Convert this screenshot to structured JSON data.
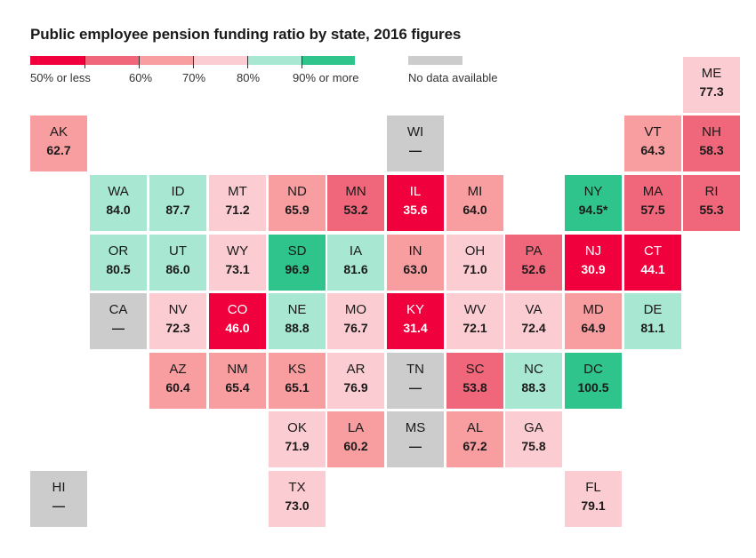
{
  "title": "Public employee pension funding ratio by state, 2016 figures",
  "legend": {
    "bins": [
      {
        "label": "50% or less",
        "color": "#f0003c"
      },
      {
        "label": "60%",
        "color": "#f0667a"
      },
      {
        "label": "70%",
        "color": "#f89ea1"
      },
      {
        "label": "80%",
        "color": "#fbcdd2"
      },
      {
        "label": "90% or more",
        "color": "#a8e8d2"
      },
      {
        "color": "#2ec48c"
      }
    ],
    "no_data_label": "No data available",
    "no_data_color": "#cccccc"
  },
  "states": [
    {
      "abbr": "ME",
      "value": "77.3",
      "color": "#fbcdd2"
    },
    {
      "abbr": "AK",
      "value": "62.7",
      "color": "#f89ea1"
    },
    {
      "abbr": "WI",
      "value": "—",
      "color": "#cccccc"
    },
    {
      "abbr": "VT",
      "value": "64.3",
      "color": "#f89ea1"
    },
    {
      "abbr": "NH",
      "value": "58.3",
      "color": "#f0667a"
    },
    {
      "abbr": "WA",
      "value": "84.0",
      "color": "#a8e8d2"
    },
    {
      "abbr": "ID",
      "value": "87.7",
      "color": "#a8e8d2"
    },
    {
      "abbr": "MT",
      "value": "71.2",
      "color": "#fbcdd2"
    },
    {
      "abbr": "ND",
      "value": "65.9",
      "color": "#f89ea1"
    },
    {
      "abbr": "MN",
      "value": "53.2",
      "color": "#f0667a"
    },
    {
      "abbr": "IL",
      "value": "35.6",
      "color": "#f0003c",
      "dark": true
    },
    {
      "abbr": "MI",
      "value": "64.0",
      "color": "#f89ea1"
    },
    {
      "abbr": "NY",
      "value": "94.5*",
      "color": "#2ec48c"
    },
    {
      "abbr": "MA",
      "value": "57.5",
      "color": "#f0667a"
    },
    {
      "abbr": "RI",
      "value": "55.3",
      "color": "#f0667a"
    },
    {
      "abbr": "OR",
      "value": "80.5",
      "color": "#a8e8d2"
    },
    {
      "abbr": "UT",
      "value": "86.0",
      "color": "#a8e8d2"
    },
    {
      "abbr": "WY",
      "value": "73.1",
      "color": "#fbcdd2"
    },
    {
      "abbr": "SD",
      "value": "96.9",
      "color": "#2ec48c"
    },
    {
      "abbr": "IA",
      "value": "81.6",
      "color": "#a8e8d2"
    },
    {
      "abbr": "IN",
      "value": "63.0",
      "color": "#f89ea1"
    },
    {
      "abbr": "OH",
      "value": "71.0",
      "color": "#fbcdd2"
    },
    {
      "abbr": "PA",
      "value": "52.6",
      "color": "#f0667a"
    },
    {
      "abbr": "NJ",
      "value": "30.9",
      "color": "#f0003c",
      "dark": true
    },
    {
      "abbr": "CT",
      "value": "44.1",
      "color": "#f0003c",
      "dark": true
    },
    {
      "abbr": "CA",
      "value": "—",
      "color": "#cccccc"
    },
    {
      "abbr": "NV",
      "value": "72.3",
      "color": "#fbcdd2"
    },
    {
      "abbr": "CO",
      "value": "46.0",
      "color": "#f0003c",
      "dark": true
    },
    {
      "abbr": "NE",
      "value": "88.8",
      "color": "#a8e8d2"
    },
    {
      "abbr": "MO",
      "value": "76.7",
      "color": "#fbcdd2"
    },
    {
      "abbr": "KY",
      "value": "31.4",
      "color": "#f0003c",
      "dark": true
    },
    {
      "abbr": "WV",
      "value": "72.1",
      "color": "#fbcdd2"
    },
    {
      "abbr": "VA",
      "value": "72.4",
      "color": "#fbcdd2"
    },
    {
      "abbr": "MD",
      "value": "64.9",
      "color": "#f89ea1"
    },
    {
      "abbr": "DE",
      "value": "81.1",
      "color": "#a8e8d2"
    },
    {
      "abbr": "AZ",
      "value": "60.4",
      "color": "#f89ea1"
    },
    {
      "abbr": "NM",
      "value": "65.4",
      "color": "#f89ea1"
    },
    {
      "abbr": "KS",
      "value": "65.1",
      "color": "#f89ea1"
    },
    {
      "abbr": "AR",
      "value": "76.9",
      "color": "#fbcdd2"
    },
    {
      "abbr": "TN",
      "value": "—",
      "color": "#cccccc"
    },
    {
      "abbr": "SC",
      "value": "53.8",
      "color": "#f0667a"
    },
    {
      "abbr": "NC",
      "value": "88.3",
      "color": "#a8e8d2"
    },
    {
      "abbr": "DC",
      "value": "100.5",
      "color": "#2ec48c"
    },
    {
      "abbr": "OK",
      "value": "71.9",
      "color": "#fbcdd2"
    },
    {
      "abbr": "LA",
      "value": "60.2",
      "color": "#f89ea1"
    },
    {
      "abbr": "MS",
      "value": "—",
      "color": "#cccccc"
    },
    {
      "abbr": "AL",
      "value": "67.2",
      "color": "#f89ea1"
    },
    {
      "abbr": "GA",
      "value": "75.8",
      "color": "#fbcdd2"
    },
    {
      "abbr": "HI",
      "value": "—",
      "color": "#cccccc"
    },
    {
      "abbr": "TX",
      "value": "73.0",
      "color": "#fbcdd2"
    },
    {
      "abbr": "FL",
      "value": "79.1",
      "color": "#fbcdd2"
    }
  ]
}
